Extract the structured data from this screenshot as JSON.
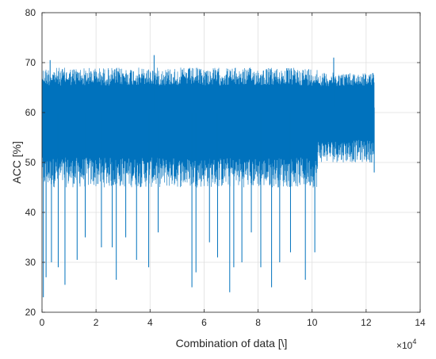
{
  "chart_data": {
    "type": "line",
    "title": "",
    "xlabel": "Combination of data [\\]",
    "ylabel": "ACC [%]",
    "x_exponent_label": "×10",
    "x_exponent_power": "4",
    "x_scale": 10000,
    "xlim": [
      0,
      14
    ],
    "ylim": [
      20,
      80
    ],
    "x_ticks": [
      0,
      2,
      4,
      6,
      8,
      10,
      12,
      14
    ],
    "y_ticks": [
      20,
      30,
      40,
      50,
      60,
      70,
      80
    ],
    "grid": true,
    "legend": "none",
    "series": [
      {
        "color": "#0072BD",
        "segments": [
          {
            "x_start": 0,
            "x_end": 10.2,
            "y_max_approx": 69,
            "y_min_approx": 45,
            "y_center": 60
          },
          {
            "x_start": 10.2,
            "x_end": 12.3,
            "y_max_approx": 68,
            "y_min_approx": 50,
            "y_center": 61
          }
        ],
        "notable_upper_peaks": [
          {
            "x": 0.3,
            "y": 70.5
          },
          {
            "x": 4.15,
            "y": 71.5
          },
          {
            "x": 10.8,
            "y": 71
          }
        ],
        "notable_lower_dips": [
          {
            "x": 0.05,
            "y": 23
          },
          {
            "x": 0.15,
            "y": 27
          },
          {
            "x": 0.35,
            "y": 30
          },
          {
            "x": 0.6,
            "y": 29
          },
          {
            "x": 0.85,
            "y": 25.5
          },
          {
            "x": 1.3,
            "y": 30.5
          },
          {
            "x": 1.6,
            "y": 35
          },
          {
            "x": 2.2,
            "y": 33
          },
          {
            "x": 2.6,
            "y": 33
          },
          {
            "x": 2.75,
            "y": 26.5
          },
          {
            "x": 3.1,
            "y": 35
          },
          {
            "x": 3.5,
            "y": 30.5
          },
          {
            "x": 3.95,
            "y": 29
          },
          {
            "x": 4.3,
            "y": 36
          },
          {
            "x": 5.55,
            "y": 25
          },
          {
            "x": 5.7,
            "y": 28
          },
          {
            "x": 6.2,
            "y": 34
          },
          {
            "x": 6.5,
            "y": 31
          },
          {
            "x": 6.95,
            "y": 24
          },
          {
            "x": 7.1,
            "y": 29
          },
          {
            "x": 7.4,
            "y": 30
          },
          {
            "x": 7.75,
            "y": 36
          },
          {
            "x": 8.1,
            "y": 29
          },
          {
            "x": 8.5,
            "y": 25
          },
          {
            "x": 8.8,
            "y": 30
          },
          {
            "x": 9.2,
            "y": 32
          },
          {
            "x": 9.75,
            "y": 26.5
          },
          {
            "x": 10.1,
            "y": 32
          },
          {
            "x": 12.3,
            "y": 48
          }
        ]
      }
    ]
  }
}
